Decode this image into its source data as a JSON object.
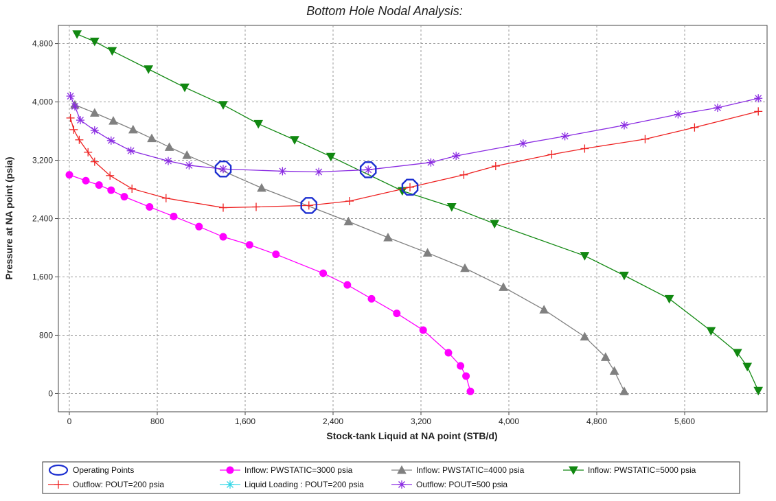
{
  "chart_data": {
    "type": "line",
    "title": "Bottom Hole Nodal Analysis:",
    "xlabel": "Stock-tank Liquid at NA point (STB/d)",
    "ylabel": "Pressure at NA point (psia)",
    "xlim": [
      -100,
      6350
    ],
    "ylim": [
      -250,
      5050
    ],
    "xticks": [
      0,
      800,
      1600,
      2400,
      3200,
      4000,
      4800,
      5600
    ],
    "yticks": [
      0,
      800,
      1600,
      2400,
      3200,
      4000,
      4800
    ],
    "xtick_labels": [
      "0",
      "800",
      "1,600",
      "2,400",
      "3,200",
      "4,000",
      "4,800",
      "5,600"
    ],
    "ytick_labels": [
      "0",
      "800",
      "1,600",
      "2,400",
      "3,200",
      "4,000",
      "4,800"
    ],
    "grid": true,
    "legend_position": "bottom",
    "operating_points": {
      "name": "Operating Points",
      "color": "#1c2fd0",
      "points": [
        [
          1400,
          3080
        ],
        [
          2180,
          2580
        ],
        [
          2720,
          3070
        ],
        [
          3100,
          2830
        ]
      ]
    },
    "series": [
      {
        "name": "Inflow: PWSTATIC=3000 psia",
        "color": "#ff00ff",
        "marker": "circle",
        "points": [
          [
            0,
            3000
          ],
          [
            150,
            2920
          ],
          [
            270,
            2860
          ],
          [
            380,
            2790
          ],
          [
            500,
            2700
          ],
          [
            730,
            2560
          ],
          [
            950,
            2430
          ],
          [
            1180,
            2290
          ],
          [
            1400,
            2150
          ],
          [
            1640,
            2040
          ],
          [
            1880,
            1910
          ],
          [
            2310,
            1650
          ],
          [
            2530,
            1490
          ],
          [
            2750,
            1300
          ],
          [
            2980,
            1100
          ],
          [
            3220,
            870
          ],
          [
            3450,
            560
          ],
          [
            3560,
            380
          ],
          [
            3610,
            240
          ],
          [
            3650,
            30
          ]
        ]
      },
      {
        "name": "Inflow: PWSTATIC=4000 psia",
        "color": "#808080",
        "marker": "triangle-up",
        "points": [
          [
            50,
            3960
          ],
          [
            230,
            3850
          ],
          [
            400,
            3740
          ],
          [
            580,
            3620
          ],
          [
            750,
            3500
          ],
          [
            910,
            3380
          ],
          [
            1070,
            3270
          ],
          [
            1750,
            2820
          ],
          [
            2540,
            2360
          ],
          [
            2900,
            2140
          ],
          [
            3260,
            1930
          ],
          [
            3600,
            1720
          ],
          [
            3950,
            1460
          ],
          [
            4320,
            1150
          ],
          [
            4690,
            780
          ],
          [
            4880,
            500
          ],
          [
            4960,
            310
          ],
          [
            5050,
            30
          ]
        ]
      },
      {
        "name": "Inflow: PWSTATIC=5000 psia",
        "color": "#118811",
        "marker": "triangle-down",
        "points": [
          [
            70,
            4930
          ],
          [
            230,
            4830
          ],
          [
            390,
            4700
          ],
          [
            720,
            4450
          ],
          [
            1050,
            4200
          ],
          [
            1400,
            3960
          ],
          [
            1720,
            3700
          ],
          [
            2050,
            3480
          ],
          [
            2380,
            3250
          ],
          [
            3030,
            2780
          ],
          [
            3480,
            2560
          ],
          [
            3870,
            2330
          ],
          [
            4690,
            1890
          ],
          [
            5050,
            1620
          ],
          [
            5460,
            1300
          ],
          [
            5840,
            860
          ],
          [
            6080,
            560
          ],
          [
            6170,
            370
          ],
          [
            6270,
            40
          ]
        ]
      },
      {
        "name": "Outflow: POUT=200 psia",
        "color": "#ee2222",
        "marker": "plus",
        "points": [
          [
            10,
            3780
          ],
          [
            40,
            3620
          ],
          [
            90,
            3480
          ],
          [
            170,
            3310
          ],
          [
            230,
            3180
          ],
          [
            370,
            2990
          ],
          [
            570,
            2810
          ],
          [
            880,
            2680
          ],
          [
            1400,
            2550
          ],
          [
            1700,
            2560
          ],
          [
            2180,
            2580
          ],
          [
            2550,
            2640
          ],
          [
            3100,
            2830
          ],
          [
            3590,
            3000
          ],
          [
            3880,
            3120
          ],
          [
            4390,
            3280
          ],
          [
            4690,
            3360
          ],
          [
            5240,
            3490
          ],
          [
            5690,
            3650
          ],
          [
            6270,
            3870
          ]
        ]
      },
      {
        "name": "Liquid Loading : POUT=200 psia",
        "color": "#33d6e6",
        "marker": "asterisk",
        "points": []
      },
      {
        "name": "Outflow: POUT=500 psia",
        "color": "#8a2be2",
        "marker": "asterisk",
        "points": [
          [
            10,
            4080
          ],
          [
            50,
            3940
          ],
          [
            100,
            3750
          ],
          [
            230,
            3610
          ],
          [
            380,
            3470
          ],
          [
            560,
            3330
          ],
          [
            900,
            3190
          ],
          [
            1090,
            3130
          ],
          [
            1400,
            3080
          ],
          [
            1940,
            3050
          ],
          [
            2270,
            3040
          ],
          [
            2720,
            3070
          ],
          [
            3290,
            3170
          ],
          [
            3520,
            3260
          ],
          [
            4130,
            3430
          ],
          [
            4510,
            3530
          ],
          [
            5050,
            3680
          ],
          [
            5540,
            3830
          ],
          [
            5900,
            3920
          ],
          [
            6270,
            4050
          ]
        ]
      }
    ]
  }
}
